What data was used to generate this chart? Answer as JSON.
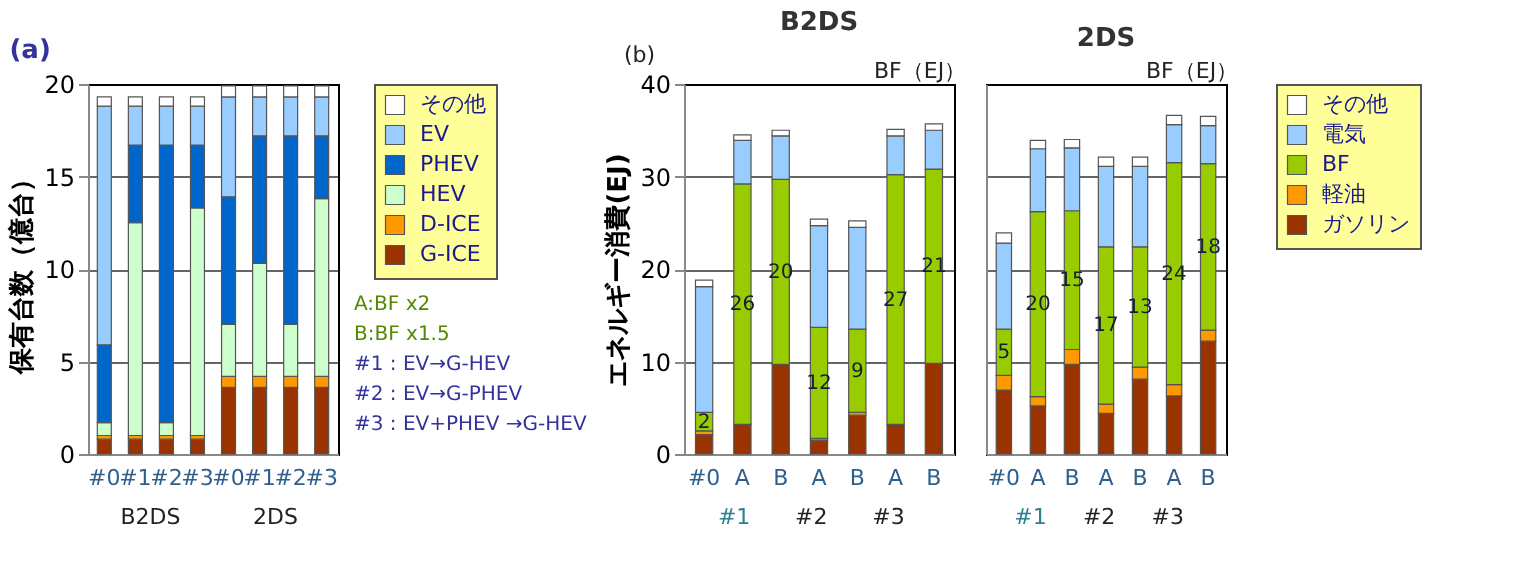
{
  "chart_data": [
    {
      "type": "bar",
      "title": "(a)",
      "ylabel": "保有台数（億台）",
      "stacked": true,
      "grid": "y",
      "legend": "right",
      "categories": [
        "#0",
        "#1",
        "#2",
        "#3",
        "#0",
        "#1",
        "#2",
        "#3"
      ],
      "ylim": [
        0,
        20
      ],
      "yticks": [
        0,
        5,
        10,
        15,
        20
      ],
      "series": [
        {
          "name": "G-ICE",
          "color": "#993300",
          "values": [
            0.8,
            0.8,
            0.8,
            0.8,
            3.6,
            3.6,
            3.6,
            3.6
          ]
        },
        {
          "name": "D-ICE",
          "color": "#ff9900",
          "values": [
            0.2,
            0.2,
            0.2,
            0.2,
            0.6,
            0.6,
            0.6,
            0.6
          ]
        },
        {
          "name": "HEV",
          "color": "#ccffcc",
          "values": [
            0.7,
            11.5,
            0.7,
            12.3,
            2.8,
            6.1,
            2.8,
            9.6
          ]
        },
        {
          "name": "PHEV",
          "color": "#0066cc",
          "values": [
            4.2,
            4.2,
            15.0,
            3.4,
            6.9,
            6.9,
            10.2,
            3.4
          ]
        },
        {
          "name": "EV",
          "color": "#99ccff",
          "values": [
            12.9,
            2.1,
            2.1,
            2.1,
            5.4,
            2.1,
            2.1,
            2.1
          ]
        },
        {
          "name": "その他",
          "color": "#ffffff",
          "values": [
            0.5,
            0.5,
            0.5,
            0.5,
            0.6,
            0.6,
            0.6,
            0.6
          ]
        }
      ],
      "annotations": [
        "B2DS",
        "2DS",
        "A:BF x2",
        "B:BF x1.5",
        "#1 : EV→G-HEV",
        "#2 : EV→G-PHEV",
        "#3 : EV+PHEV →G-HEV"
      ]
    },
    {
      "type": "bar",
      "title": "B2DS",
      "ylabel": "エネルギー消費(EJ)",
      "stacked": true,
      "grid": "y",
      "legend": "right",
      "categories": [
        "#0",
        "A",
        "B",
        "A",
        "B",
        "A",
        "B"
      ],
      "ylim": [
        0,
        40
      ],
      "yticks": [
        0,
        10,
        20,
        30,
        40
      ],
      "series": [
        {
          "name": "ガソリン",
          "color": "#993300",
          "values": [
            2.1,
            3.2,
            9.7,
            1.5,
            4.2,
            3.2,
            9.8
          ]
        },
        {
          "name": "軽油",
          "color": "#ff9900",
          "values": [
            0.4,
            null,
            null,
            0.2,
            0.3,
            null,
            null
          ]
        },
        {
          "name": "BF",
          "color": "#99cc00",
          "values": [
            2.0,
            26,
            20,
            12,
            9,
            27,
            21
          ],
          "value_labels": [
            "2",
            "26",
            "20",
            "12",
            "9",
            "27",
            "21"
          ]
        },
        {
          "name": "電気",
          "color": "#99ccff",
          "values": [
            13.6,
            4.7,
            4.7,
            11.0,
            11.0,
            4.2,
            4.2
          ]
        },
        {
          "name": "その他",
          "color": "#ffffff",
          "values": [
            0.7,
            0.6,
            0.6,
            0.7,
            0.7,
            0.7,
            0.7
          ]
        }
      ],
      "annotations": [
        "(b)",
        "BF（EJ）",
        "#1",
        "#2",
        "#3"
      ]
    },
    {
      "type": "bar",
      "title": "2DS",
      "stacked": true,
      "grid": "y",
      "legend": "right",
      "tick_labels": "x",
      "categories": [
        "#0",
        "A",
        "B",
        "A",
        "B",
        "A",
        "B"
      ],
      "ylim": [
        0,
        40
      ],
      "yticks": [
        0,
        10,
        20,
        30,
        40
      ],
      "series": [
        {
          "name": "ガソリン",
          "color": "#993300",
          "values": [
            6.9,
            5.2,
            9.7,
            4.4,
            8.1,
            6.3,
            12.2
          ]
        },
        {
          "name": "軽油",
          "color": "#ff9900",
          "values": [
            1.6,
            1.0,
            1.6,
            1.0,
            1.3,
            1.2,
            1.2
          ]
        },
        {
          "name": "BF",
          "color": "#99cc00",
          "values": [
            5,
            20,
            15,
            17,
            13,
            24,
            18
          ],
          "value_labels": [
            "5",
            "20",
            "15",
            "17",
            "13",
            "24",
            "18"
          ]
        },
        {
          "name": "電気",
          "color": "#99ccff",
          "values": [
            9.3,
            6.8,
            6.8,
            8.7,
            8.7,
            4.1,
            4.1
          ]
        },
        {
          "name": "その他",
          "color": "#ffffff",
          "values": [
            1.1,
            0.9,
            0.9,
            1.0,
            1.0,
            1.0,
            1.0
          ]
        }
      ],
      "annotations": [
        "BF（EJ）",
        "#1",
        "#2",
        "#3"
      ]
    }
  ]
}
